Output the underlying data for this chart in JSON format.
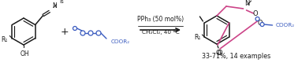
{
  "figsize": [
    3.78,
    0.8
  ],
  "dpi": 100,
  "background_color": "#ffffff",
  "colors": {
    "black": "#1a1a1a",
    "blue": "#3a5bbf",
    "pink": "#cc4488",
    "gray": "#888888"
  },
  "conditions_line1": "PPh₃ (50 mol%)",
  "conditions_line2": "CH₂Cl₂, 40 ºC",
  "yield_text": "33-71%, 14 examples",
  "plus_sign": "+",
  "coor2_label": "COOR₂"
}
